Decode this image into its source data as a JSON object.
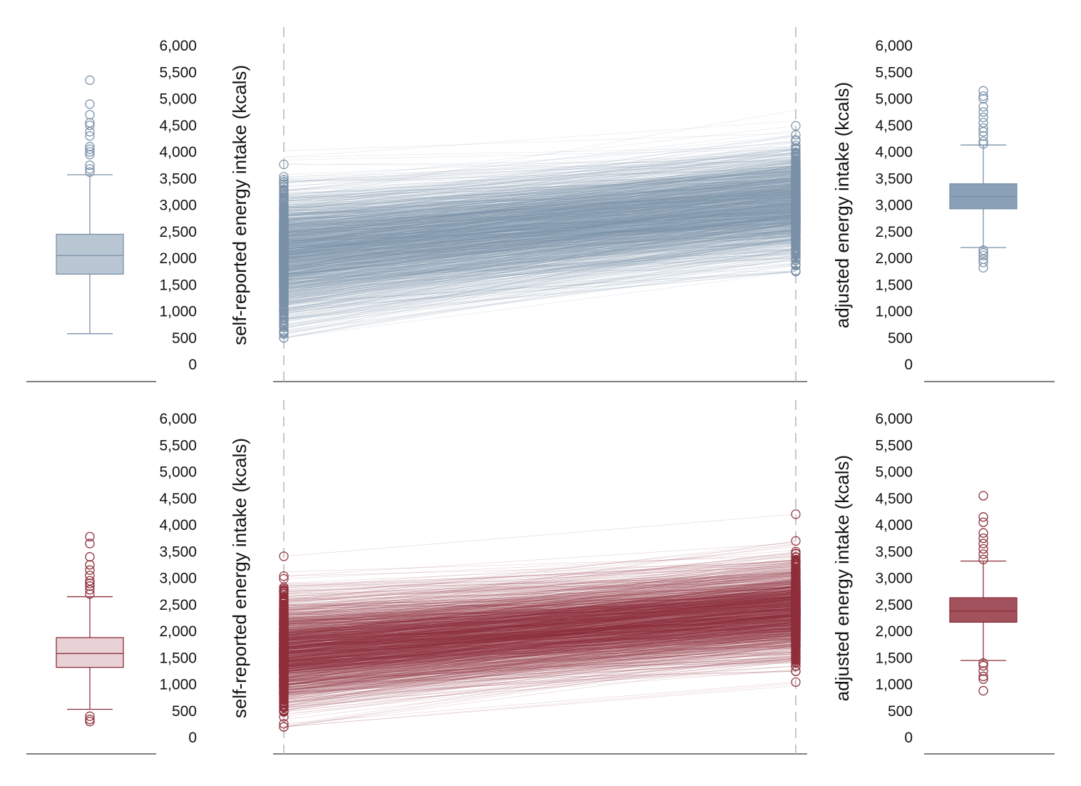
{
  "chart_data": {
    "type": "slope-box",
    "y_ticks": [
      0,
      500,
      1000,
      1500,
      2000,
      2500,
      3000,
      3500,
      4000,
      4500,
      5000,
      5500,
      6000
    ],
    "y_tick_labels": [
      "0",
      "500",
      "1,000",
      "1,500",
      "2,000",
      "2,500",
      "3,000",
      "3,500",
      "4,000",
      "4,500",
      "5,000",
      "5,500",
      "6,000"
    ],
    "ylim": [
      0,
      6000
    ],
    "left_ylabel": "self-reported energy intake (kcals)",
    "right_ylabel": "adjusted energy intake (kcals)",
    "panels": [
      {
        "color": "#7a91a8",
        "box_fill_left": "#b9c6d3",
        "box_fill_right": "#8aa0b6",
        "self_reported": {
          "whisker_low": 580,
          "q1": 1700,
          "median": 2050,
          "q3": 2450,
          "whisker_high": 3570,
          "outliers_high": [
            3620,
            3680,
            3750,
            3950,
            4000,
            4050,
            4100,
            4300,
            4380,
            4500,
            4550,
            4700,
            4900,
            5350
          ]
        },
        "adjusted": {
          "whisker_low": 2200,
          "q1": 2930,
          "median": 3160,
          "q3": 3400,
          "whisker_high": 4130,
          "outliers_low": [
            1820,
            1920,
            1980,
            2050,
            2100,
            2150
          ],
          "outliers_high": [
            4150,
            4200,
            4300,
            4380,
            4450,
            4550,
            4650,
            4750,
            4850,
            5000,
            5050,
            5150
          ]
        },
        "lines": {
          "count": 1400,
          "sr_mean": 2100,
          "sr_sd": 600,
          "sr_min": 500,
          "sr_max": 5450,
          "adj_base": 1800,
          "adj_slope": 0.6,
          "adj_sd": 330,
          "adj_min": 1750,
          "adj_max": 5250
        }
      },
      {
        "color": "#8e2e3a",
        "box_fill_left": "#e8d2d6",
        "box_fill_right": "#a2525c",
        "self_reported": {
          "whisker_low": 530,
          "q1": 1320,
          "median": 1580,
          "q3": 1880,
          "whisker_high": 2650,
          "outliers_low": [
            300,
            340,
            400
          ],
          "outliers_high": [
            2700,
            2780,
            2850,
            2900,
            2950,
            3050,
            3150,
            3250,
            3400,
            3650,
            3780
          ]
        },
        "adjusted": {
          "whisker_low": 1450,
          "q1": 2170,
          "median": 2380,
          "q3": 2630,
          "whisker_high": 3320,
          "outliers_low": [
            880,
            1100,
            1150,
            1250,
            1350,
            1400
          ],
          "outliers_high": [
            3350,
            3450,
            3550,
            3650,
            3750,
            3850,
            4050,
            4150,
            4550
          ]
        },
        "lines": {
          "count": 1400,
          "sr_mean": 1600,
          "sr_sd": 500,
          "sr_min": 200,
          "sr_max": 3800,
          "adj_base": 1400,
          "adj_slope": 0.63,
          "adj_sd": 300,
          "adj_min": 800,
          "adj_max": 4650
        }
      }
    ]
  }
}
